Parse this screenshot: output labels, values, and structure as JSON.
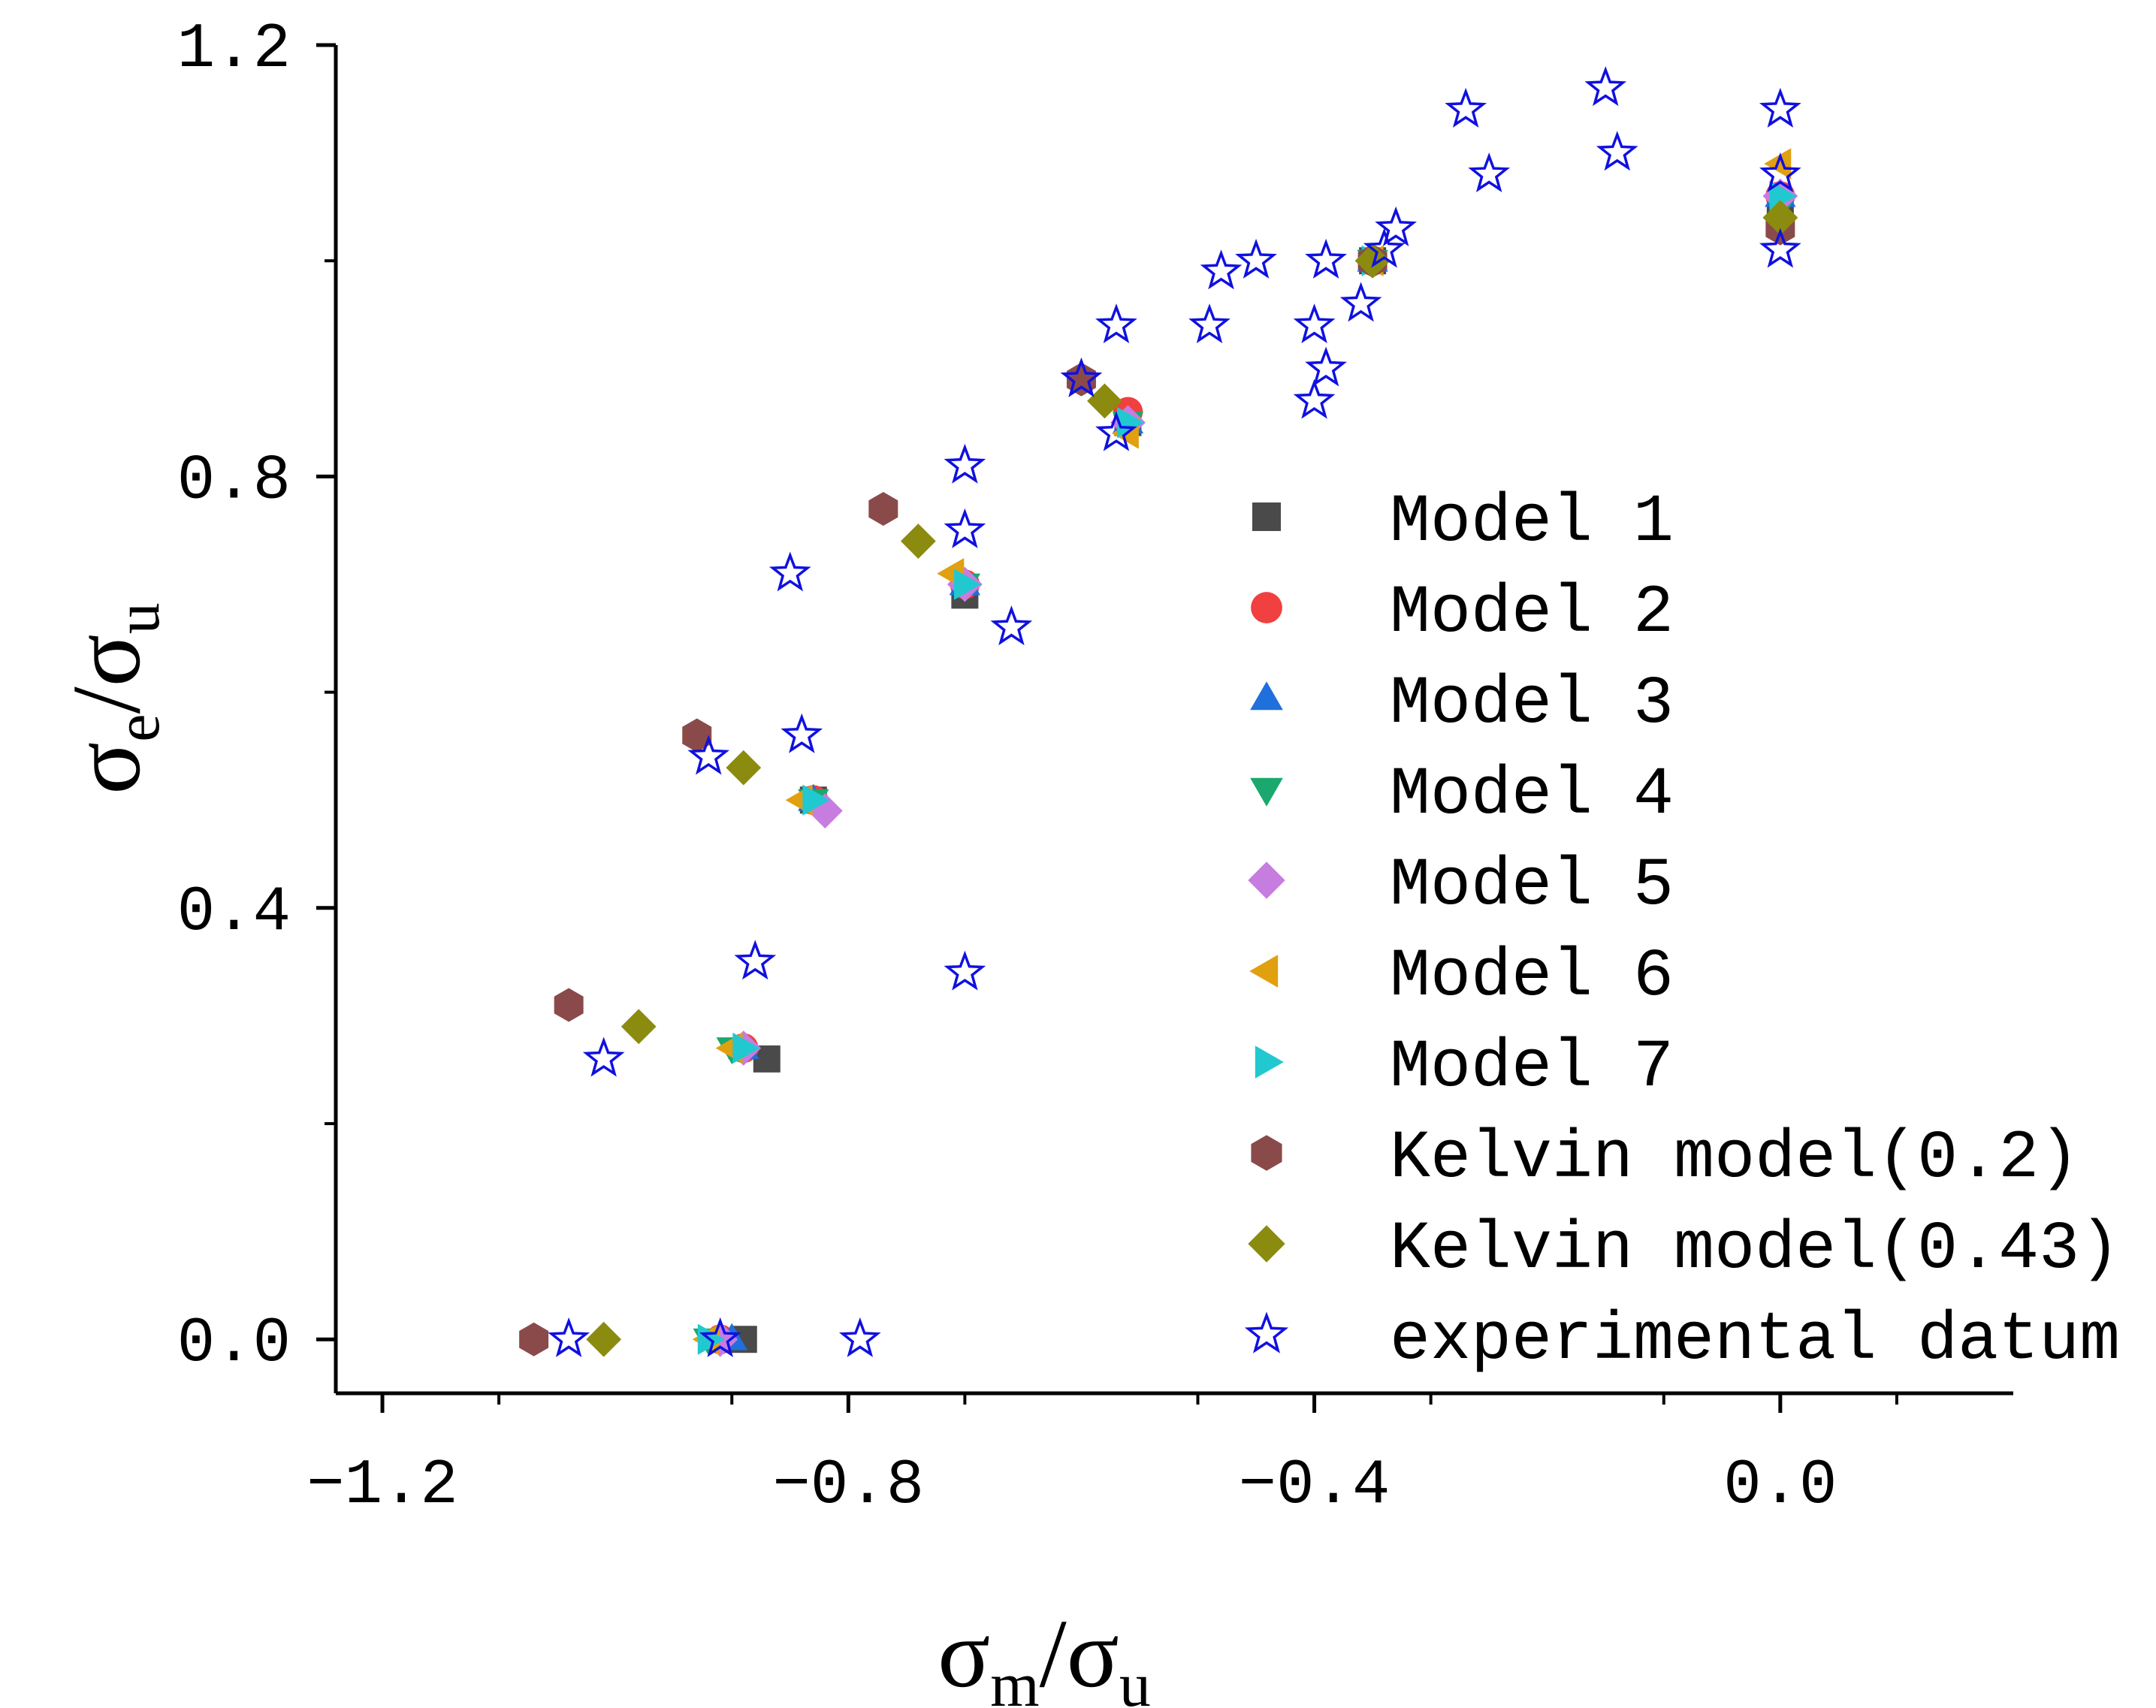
{
  "chart_data": {
    "type": "scatter",
    "xlabel": {
      "main": "σ",
      "sub": "m",
      "sep": "/",
      "main2": "σ",
      "sub2": "u"
    },
    "ylabel": {
      "main": "σ",
      "sub": "e",
      "sep": "/",
      "main2": "σ",
      "sub2": "u"
    },
    "xlim": [
      -1.24,
      0.2
    ],
    "ylim": [
      -0.05,
      1.2
    ],
    "xticks": [
      "-1.2",
      "-0.8",
      "-0.4",
      "0.0"
    ],
    "xtick_values": [
      -1.2,
      -0.8,
      -0.4,
      0.0
    ],
    "yticks": [
      "0.0",
      "0.4",
      "0.8",
      "1.2"
    ],
    "ytick_values": [
      0.0,
      0.4,
      0.8,
      1.2
    ],
    "legend_position": "right",
    "series": [
      {
        "name": "Model 1",
        "marker": "square",
        "color": "#4a4a4a",
        "points": [
          [
            0,
            1.05
          ],
          [
            -0.35,
            1.0
          ],
          [
            -0.56,
            0.85
          ],
          [
            -0.7,
            0.69
          ],
          [
            -0.83,
            0.5
          ],
          [
            -0.87,
            0.26
          ],
          [
            -0.89,
            0.0
          ]
        ]
      },
      {
        "name": "Model 2",
        "marker": "circle",
        "color": "#f04040",
        "points": [
          [
            0,
            1.06
          ],
          [
            -0.35,
            1.0
          ],
          [
            -0.56,
            0.86
          ],
          [
            -0.7,
            0.7
          ],
          [
            -0.83,
            0.5
          ],
          [
            -0.89,
            0.27
          ],
          [
            -0.91,
            0.0
          ]
        ]
      },
      {
        "name": "Model 3",
        "marker": "triangle-up",
        "color": "#1f6fdc",
        "points": [
          [
            0,
            1.06
          ],
          [
            -0.35,
            1.0
          ],
          [
            -0.56,
            0.85
          ],
          [
            -0.7,
            0.7
          ],
          [
            -0.83,
            0.5
          ],
          [
            -0.89,
            0.27
          ],
          [
            -0.9,
            0.0
          ]
        ]
      },
      {
        "name": "Model 4",
        "marker": "triangle-down",
        "color": "#1aa86e",
        "points": [
          [
            0,
            1.05
          ],
          [
            -0.35,
            1.0
          ],
          [
            -0.56,
            0.85
          ],
          [
            -0.7,
            0.7
          ],
          [
            -0.83,
            0.5
          ],
          [
            -0.9,
            0.27
          ],
          [
            -0.92,
            0.0
          ]
        ]
      },
      {
        "name": "Model 5",
        "marker": "diamond",
        "color": "#c77ce0",
        "points": [
          [
            0,
            1.06
          ],
          [
            -0.35,
            1.0
          ],
          [
            -0.56,
            0.85
          ],
          [
            -0.7,
            0.7
          ],
          [
            -0.82,
            0.49
          ],
          [
            -0.89,
            0.27
          ],
          [
            -0.91,
            0.0
          ]
        ]
      },
      {
        "name": "Model 6",
        "marker": "triangle-left",
        "color": "#e0a010",
        "points": [
          [
            0,
            1.09
          ],
          [
            -0.35,
            1.0
          ],
          [
            -0.56,
            0.84
          ],
          [
            -0.71,
            0.71
          ],
          [
            -0.84,
            0.5
          ],
          [
            -0.9,
            0.27
          ],
          [
            -0.92,
            0.0
          ]
        ]
      },
      {
        "name": "Model 7",
        "marker": "triangle-right",
        "color": "#22c8d0",
        "points": [
          [
            0,
            1.06
          ],
          [
            -0.35,
            1.0
          ],
          [
            -0.56,
            0.85
          ],
          [
            -0.7,
            0.7
          ],
          [
            -0.83,
            0.5
          ],
          [
            -0.89,
            0.27
          ],
          [
            -0.92,
            0.0
          ]
        ]
      },
      {
        "name": "Kelvin model(0.2)",
        "marker": "hexagon",
        "color": "#8b4a4a",
        "points": [
          [
            0,
            1.03
          ],
          [
            -0.35,
            1.0
          ],
          [
            -0.6,
            0.89
          ],
          [
            -0.77,
            0.77
          ],
          [
            -0.93,
            0.56
          ],
          [
            -1.04,
            0.31
          ],
          [
            -1.07,
            0.0
          ]
        ]
      },
      {
        "name": "Kelvin model(0.43)",
        "marker": "diamond",
        "color": "#8b8b10",
        "points": [
          [
            0,
            1.04
          ],
          [
            -0.35,
            1.0
          ],
          [
            -0.58,
            0.87
          ],
          [
            -0.74,
            0.74
          ],
          [
            -0.89,
            0.53
          ],
          [
            -0.98,
            0.29
          ],
          [
            -1.01,
            0.0
          ]
        ]
      },
      {
        "name": "experimental datum",
        "marker": "star-open",
        "color": "#1010e0",
        "points": [
          [
            -1.04,
            0.0
          ],
          [
            -0.91,
            0.0
          ],
          [
            -0.79,
            0.0
          ],
          [
            -1.01,
            0.26
          ],
          [
            -0.88,
            0.35
          ],
          [
            -0.7,
            0.34
          ],
          [
            -0.92,
            0.54
          ],
          [
            -0.84,
            0.56
          ],
          [
            -0.85,
            0.71
          ],
          [
            -0.7,
            0.75
          ],
          [
            -0.7,
            0.81
          ],
          [
            -0.66,
            0.66
          ],
          [
            -0.6,
            0.89
          ],
          [
            -0.57,
            0.84
          ],
          [
            -0.57,
            0.94
          ],
          [
            -0.49,
            0.94
          ],
          [
            -0.48,
            0.99
          ],
          [
            -0.45,
            1.0
          ],
          [
            -0.4,
            0.94
          ],
          [
            -0.4,
            0.87
          ],
          [
            -0.39,
            0.9
          ],
          [
            -0.39,
            1.0
          ],
          [
            -0.36,
            0.96
          ],
          [
            -0.34,
            1.01
          ],
          [
            -0.33,
            1.03
          ],
          [
            -0.27,
            1.14
          ],
          [
            -0.25,
            1.08
          ],
          [
            -0.15,
            1.16
          ],
          [
            -0.14,
            1.1
          ],
          [
            0,
            1.14
          ],
          [
            0,
            1.08
          ],
          [
            0,
            1.01
          ]
        ]
      }
    ]
  }
}
